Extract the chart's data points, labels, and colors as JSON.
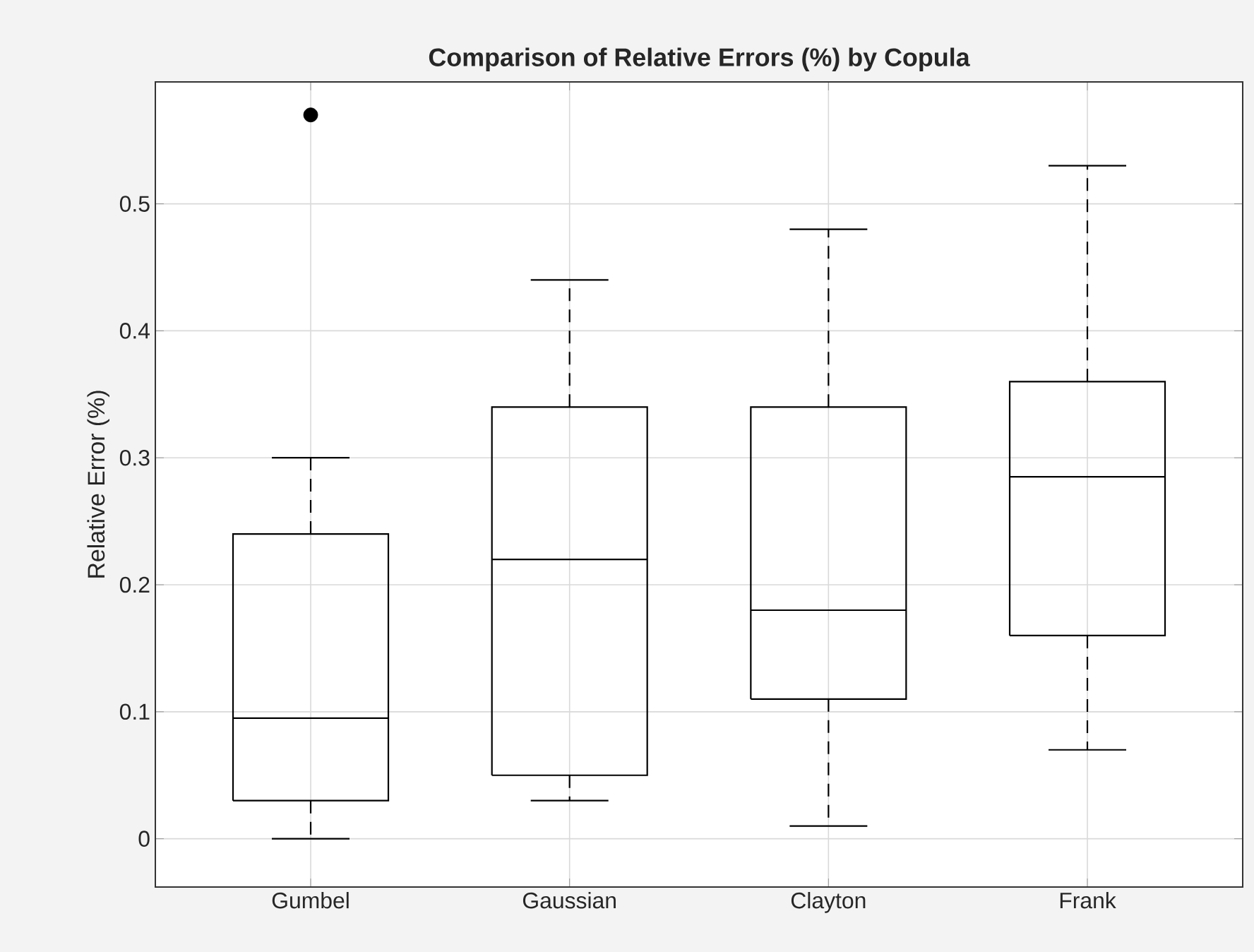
{
  "chart_data": {
    "type": "box",
    "title": "Comparison of Relative Errors (%) by Copula",
    "ylabel": "Relative Error (%)",
    "categories": [
      "Gumbel",
      "Gaussian",
      "Clayton",
      "Frank"
    ],
    "boxes": [
      {
        "low": 0,
        "q1": 0.03,
        "median": 0.095,
        "q3": 0.24,
        "high": 0.3,
        "outliers": [
          0.57
        ]
      },
      {
        "low": 0.03,
        "q1": 0.05,
        "median": 0.22,
        "q3": 0.34,
        "high": 0.44
      },
      {
        "low": 0.01,
        "q1": 0.11,
        "median": 0.18,
        "q3": 0.34,
        "high": 0.48
      },
      {
        "low": 0.07,
        "q1": 0.16,
        "median": 0.285,
        "q3": 0.36,
        "high": 0.53
      }
    ],
    "color": "#000000",
    "ylim": [
      -0.038,
      0.596
    ],
    "yticks": [
      0,
      0.1,
      0.2,
      0.3,
      0.4,
      0.5
    ],
    "grid": true
  }
}
